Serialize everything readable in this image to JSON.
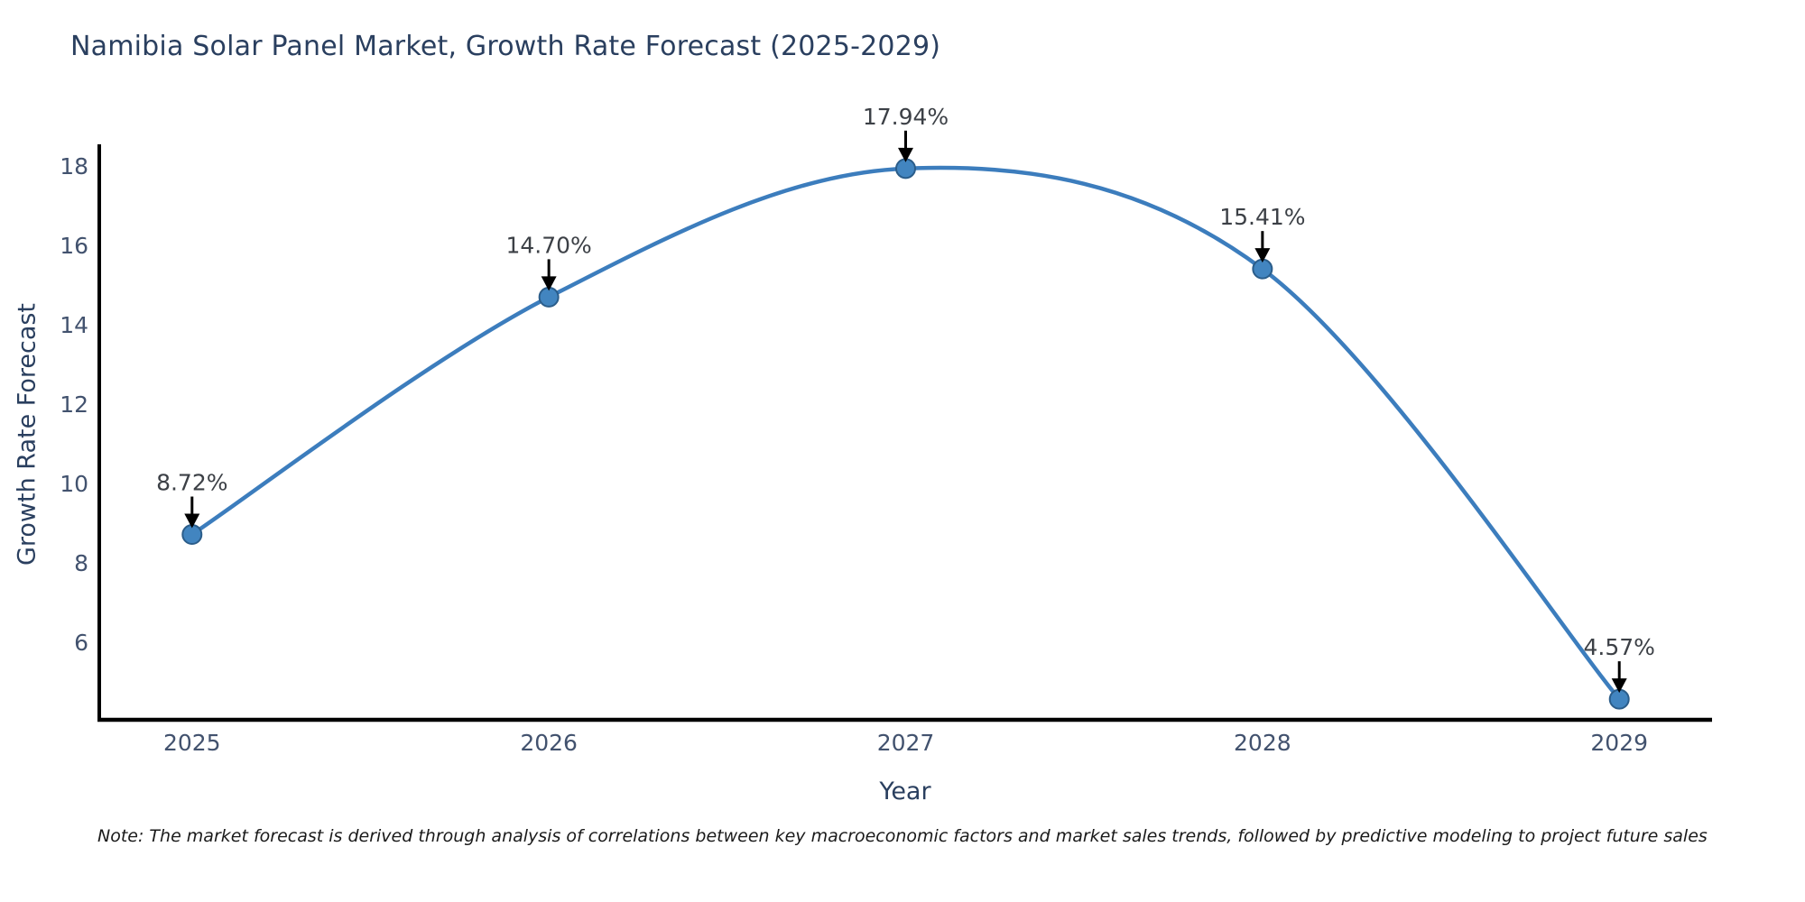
{
  "chart_data": {
    "type": "line",
    "title": "Namibia Solar Panel Market, Growth Rate Forecast (2025-2029)",
    "xlabel": "Year",
    "ylabel": "Growth Rate Forecast",
    "categories": [
      2025,
      2026,
      2027,
      2028,
      2029
    ],
    "series": [
      {
        "name": "Growth Rate Forecast",
        "values": [
          8.72,
          14.7,
          17.94,
          15.41,
          4.57
        ],
        "point_labels": [
          "8.72%",
          "14.70%",
          "17.94%",
          "15.41%",
          "4.57%"
        ]
      }
    ],
    "x_ticks": [
      "2025",
      "2026",
      "2027",
      "2028",
      "2029"
    ],
    "y_ticks": [
      6,
      8,
      10,
      12,
      14,
      16,
      18
    ],
    "xlim": [
      2024.74,
      2029.26
    ],
    "ylim": [
      4.05,
      18.55
    ],
    "grid": false,
    "legend_position": "none",
    "line_shape": "spline",
    "marker": "circle",
    "annotation_arrows": true,
    "colors": {
      "line": "#3c7dbd",
      "marker_fill": "#4285c0",
      "marker_edge": "#2b5d8a",
      "axis": "#000000",
      "arrow": "#000000",
      "title_text": "#2a3f5f",
      "axis_label_text": "#2a3f5f",
      "tick_text": "#42526e",
      "annotation_text": "#3c4046",
      "background": "#ffffff"
    }
  },
  "note": "Note: The market forecast is derived through analysis of correlations between key macroeconomic factors and market sales trends, followed by predictive modeling to project future sales"
}
